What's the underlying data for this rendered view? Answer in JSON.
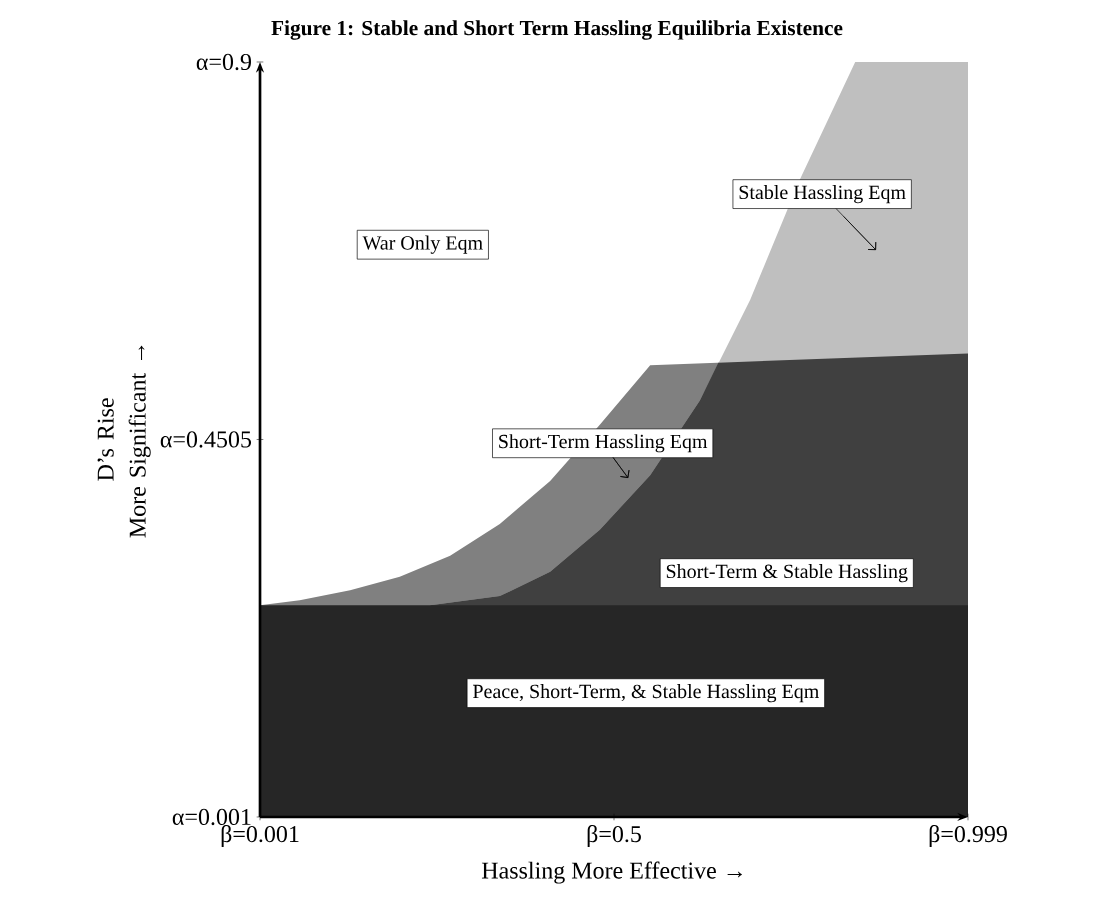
{
  "chart_data": {
    "type": "area",
    "title": "Figure 1: Stable and Short Term Hassling Equilibria Existence",
    "xlabel": "Hassling More Effective →",
    "ylabel": "D’s Rise\nMore Significant →",
    "xlim": [
      0.001,
      0.999
    ],
    "ylim": [
      0.001,
      0.9
    ],
    "xticks": [
      {
        "value": 0.001,
        "label": "β=0.001"
      },
      {
        "value": 0.5,
        "label": "β=0.5"
      },
      {
        "value": 0.999,
        "label": "β=0.999"
      }
    ],
    "yticks": [
      {
        "value": 0.001,
        "label": "α=0.001"
      },
      {
        "value": 0.4505,
        "label": "α=0.4505"
      },
      {
        "value": 0.9,
        "label": "α=0.9"
      }
    ],
    "series": [
      {
        "color": "#808080",
        "x": [
          0.001,
          0.057,
          0.128,
          0.198,
          0.269,
          0.339,
          0.41,
          0.48,
          0.551,
          0.999
        ],
        "values": [
          0.253,
          0.259,
          0.271,
          0.287,
          0.312,
          0.35,
          0.401,
          0.468,
          0.539,
          0.553
        ]
      },
      {
        "color": "#bfbfbf",
        "x": [
          0.241,
          0.339,
          0.41,
          0.48,
          0.551,
          0.621,
          0.692,
          0.762,
          0.84,
          0.999
        ],
        "values": [
          0.253,
          0.264,
          0.293,
          0.343,
          0.408,
          0.497,
          0.617,
          0.76,
          0.9,
          0.9
        ]
      },
      {
        "color": "#404040",
        "x": [
          0.241,
          0.339,
          0.41,
          0.48,
          0.551,
          0.621,
          0.647,
          0.999
        ],
        "values": [
          0.253,
          0.264,
          0.293,
          0.343,
          0.408,
          0.497,
          0.542,
          0.553
        ]
      },
      {
        "color": "#262626",
        "x": [
          0.001,
          0.999
        ],
        "values": [
          0.253,
          0.253
        ]
      }
    ],
    "annotations": [
      "Stable Hassling Eqm",
      "Short-Term Hassling Eqm",
      "War Only Eqm",
      "Short-Term & Stable Hassling",
      "Peace, Short-Term, & Stable Hassling Eqm"
    ]
  }
}
